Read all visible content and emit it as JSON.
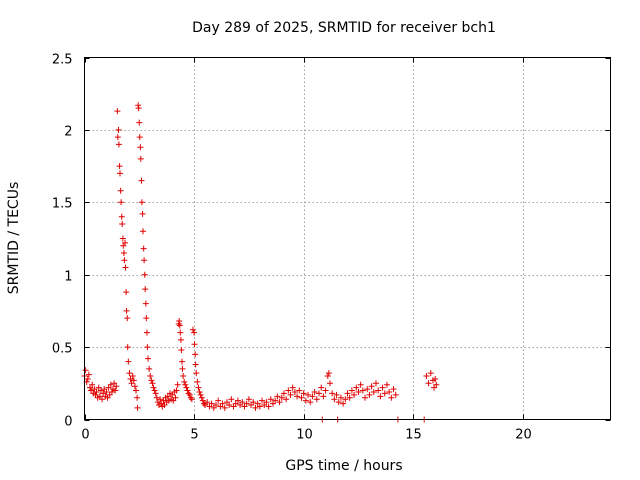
{
  "chart_data": {
    "type": "scatter",
    "title": "Day 289 of 2025, SRMTID for receiver bch1",
    "xlabel": "GPS time / hours",
    "ylabel": "SRMTID / TECUs",
    "xlim": [
      0,
      24
    ],
    "ylim": [
      0,
      2.5
    ],
    "xticks": [
      0,
      5,
      10,
      15,
      20
    ],
    "xtick_labels": [
      "0",
      "5",
      "10",
      "15",
      "20"
    ],
    "yticks": [
      0,
      0.5,
      1,
      1.5,
      2,
      2.5
    ],
    "ytick_labels": [
      "0",
      "0.5",
      "1",
      "1.5",
      "2",
      "2.5"
    ],
    "grid": true,
    "marker": "plus",
    "color": "#e00000",
    "series": [
      {
        "name": "bch1",
        "points": [
          [
            0.0,
            0.3
          ],
          [
            0.05,
            0.34
          ],
          [
            0.1,
            0.26
          ],
          [
            0.15,
            0.28
          ],
          [
            0.2,
            0.31
          ],
          [
            0.25,
            0.22
          ],
          [
            0.3,
            0.2
          ],
          [
            0.35,
            0.24
          ],
          [
            0.4,
            0.18
          ],
          [
            0.45,
            0.21
          ],
          [
            0.5,
            0.17
          ],
          [
            0.55,
            0.19
          ],
          [
            0.6,
            0.15
          ],
          [
            0.65,
            0.22
          ],
          [
            0.7,
            0.16
          ],
          [
            0.75,
            0.2
          ],
          [
            0.8,
            0.14
          ],
          [
            0.85,
            0.18
          ],
          [
            0.9,
            0.21
          ],
          [
            0.95,
            0.16
          ],
          [
            1.0,
            0.19
          ],
          [
            1.05,
            0.15
          ],
          [
            1.1,
            0.22
          ],
          [
            1.15,
            0.17
          ],
          [
            1.2,
            0.24
          ],
          [
            1.25,
            0.19
          ],
          [
            1.3,
            0.21
          ],
          [
            1.35,
            0.25
          ],
          [
            1.4,
            0.2
          ],
          [
            1.45,
            0.23
          ],
          [
            1.5,
            2.13
          ],
          [
            1.52,
            1.95
          ],
          [
            1.55,
            2.0
          ],
          [
            1.57,
            1.9
          ],
          [
            1.6,
            1.75
          ],
          [
            1.62,
            1.7
          ],
          [
            1.65,
            1.58
          ],
          [
            1.67,
            1.5
          ],
          [
            1.7,
            1.4
          ],
          [
            1.72,
            1.35
          ],
          [
            1.75,
            1.25
          ],
          [
            1.77,
            1.2
          ],
          [
            1.8,
            1.15
          ],
          [
            1.82,
            1.1
          ],
          [
            1.85,
            1.22
          ],
          [
            1.87,
            1.05
          ],
          [
            1.9,
            0.88
          ],
          [
            1.92,
            0.75
          ],
          [
            1.95,
            0.7
          ],
          [
            1.97,
            0.5
          ],
          [
            2.0,
            0.4
          ],
          [
            2.05,
            0.32
          ],
          [
            2.1,
            0.28
          ],
          [
            2.15,
            0.25
          ],
          [
            2.2,
            0.3
          ],
          [
            2.25,
            0.27
          ],
          [
            2.3,
            0.23
          ],
          [
            2.35,
            0.2
          ],
          [
            2.4,
            0.15
          ],
          [
            2.42,
            0.08
          ],
          [
            2.45,
            2.17
          ],
          [
            2.47,
            2.15
          ],
          [
            2.5,
            2.05
          ],
          [
            2.52,
            1.95
          ],
          [
            2.55,
            1.88
          ],
          [
            2.57,
            1.8
          ],
          [
            2.6,
            1.65
          ],
          [
            2.62,
            1.5
          ],
          [
            2.65,
            1.42
          ],
          [
            2.67,
            1.3
          ],
          [
            2.7,
            1.18
          ],
          [
            2.72,
            1.1
          ],
          [
            2.75,
            1.0
          ],
          [
            2.77,
            0.9
          ],
          [
            2.8,
            0.8
          ],
          [
            2.82,
            0.7
          ],
          [
            2.85,
            0.6
          ],
          [
            2.87,
            0.5
          ],
          [
            2.9,
            0.42
          ],
          [
            2.95,
            0.35
          ],
          [
            3.0,
            0.3
          ],
          [
            3.05,
            0.27
          ],
          [
            3.1,
            0.25
          ],
          [
            3.15,
            0.22
          ],
          [
            3.2,
            0.2
          ],
          [
            3.25,
            0.18
          ],
          [
            3.3,
            0.15
          ],
          [
            3.35,
            0.12
          ],
          [
            3.4,
            0.1
          ],
          [
            3.45,
            0.14
          ],
          [
            3.5,
            0.11
          ],
          [
            3.55,
            0.09
          ],
          [
            3.6,
            0.13
          ],
          [
            3.65,
            0.1
          ],
          [
            3.7,
            0.15
          ],
          [
            3.75,
            0.12
          ],
          [
            3.8,
            0.16
          ],
          [
            3.85,
            0.13
          ],
          [
            3.9,
            0.18
          ],
          [
            3.95,
            0.14
          ],
          [
            4.0,
            0.17
          ],
          [
            4.05,
            0.13
          ],
          [
            4.1,
            0.19
          ],
          [
            4.15,
            0.15
          ],
          [
            4.2,
            0.2
          ],
          [
            4.25,
            0.24
          ],
          [
            4.3,
            0.66
          ],
          [
            4.32,
            0.68
          ],
          [
            4.35,
            0.65
          ],
          [
            4.37,
            0.6
          ],
          [
            4.4,
            0.55
          ],
          [
            4.42,
            0.48
          ],
          [
            4.45,
            0.4
          ],
          [
            4.47,
            0.35
          ],
          [
            4.5,
            0.3
          ],
          [
            4.55,
            0.26
          ],
          [
            4.6,
            0.24
          ],
          [
            4.65,
            0.22
          ],
          [
            4.7,
            0.2
          ],
          [
            4.75,
            0.18
          ],
          [
            4.8,
            0.17
          ],
          [
            4.85,
            0.15
          ],
          [
            4.9,
            0.14
          ],
          [
            4.95,
            0.62
          ],
          [
            5.0,
            0.6
          ],
          [
            5.02,
            0.52
          ],
          [
            5.05,
            0.45
          ],
          [
            5.07,
            0.38
          ],
          [
            5.1,
            0.32
          ],
          [
            5.15,
            0.26
          ],
          [
            5.2,
            0.22
          ],
          [
            5.25,
            0.19
          ],
          [
            5.3,
            0.17
          ],
          [
            5.35,
            0.15
          ],
          [
            5.4,
            0.13
          ],
          [
            5.45,
            0.11
          ],
          [
            5.5,
            0.1
          ],
          [
            5.6,
            0.12
          ],
          [
            5.7,
            0.09
          ],
          [
            5.8,
            0.11
          ],
          [
            5.9,
            0.08
          ],
          [
            6.0,
            0.1
          ],
          [
            6.1,
            0.13
          ],
          [
            6.2,
            0.09
          ],
          [
            6.3,
            0.11
          ],
          [
            6.4,
            0.08
          ],
          [
            6.5,
            0.12
          ],
          [
            6.6,
            0.1
          ],
          [
            6.7,
            0.14
          ],
          [
            6.8,
            0.09
          ],
          [
            6.9,
            0.11
          ],
          [
            7.0,
            0.13
          ],
          [
            7.1,
            0.1
          ],
          [
            7.2,
            0.12
          ],
          [
            7.3,
            0.09
          ],
          [
            7.4,
            0.11
          ],
          [
            7.5,
            0.14
          ],
          [
            7.6,
            0.1
          ],
          [
            7.7,
            0.12
          ],
          [
            7.8,
            0.08
          ],
          [
            7.9,
            0.11
          ],
          [
            8.0,
            0.09
          ],
          [
            8.1,
            0.13
          ],
          [
            8.2,
            0.1
          ],
          [
            8.3,
            0.12
          ],
          [
            8.4,
            0.09
          ],
          [
            8.5,
            0.14
          ],
          [
            8.6,
            0.11
          ],
          [
            8.7,
            0.13
          ],
          [
            8.8,
            0.16
          ],
          [
            8.9,
            0.12
          ],
          [
            9.0,
            0.15
          ],
          [
            9.1,
            0.18
          ],
          [
            9.2,
            0.14
          ],
          [
            9.3,
            0.2
          ],
          [
            9.4,
            0.17
          ],
          [
            9.5,
            0.22
          ],
          [
            9.6,
            0.19
          ],
          [
            9.7,
            0.16
          ],
          [
            9.8,
            0.2
          ],
          [
            9.9,
            0.15
          ],
          [
            10.0,
            0.18
          ],
          [
            10.1,
            0.13
          ],
          [
            10.2,
            0.17
          ],
          [
            10.3,
            0.12
          ],
          [
            10.4,
            0.16
          ],
          [
            10.5,
            0.19
          ],
          [
            10.6,
            0.14
          ],
          [
            10.7,
            0.18
          ],
          [
            10.8,
            0.22
          ],
          [
            10.85,
            0.0
          ],
          [
            10.9,
            0.16
          ],
          [
            11.0,
            0.2
          ],
          [
            11.1,
            0.3
          ],
          [
            11.15,
            0.32
          ],
          [
            11.2,
            0.25
          ],
          [
            11.3,
            0.18
          ],
          [
            11.4,
            0.14
          ],
          [
            11.5,
            0.17
          ],
          [
            11.55,
            0.0
          ],
          [
            11.6,
            0.12
          ],
          [
            11.7,
            0.15
          ],
          [
            11.8,
            0.11
          ],
          [
            11.9,
            0.14
          ],
          [
            12.0,
            0.18
          ],
          [
            12.1,
            0.15
          ],
          [
            12.2,
            0.2
          ],
          [
            12.3,
            0.17
          ],
          [
            12.4,
            0.22
          ],
          [
            12.5,
            0.19
          ],
          [
            12.6,
            0.24
          ],
          [
            12.7,
            0.2
          ],
          [
            12.8,
            0.15
          ],
          [
            12.9,
            0.21
          ],
          [
            13.0,
            0.17
          ],
          [
            13.1,
            0.23
          ],
          [
            13.2,
            0.19
          ],
          [
            13.3,
            0.25
          ],
          [
            13.4,
            0.2
          ],
          [
            13.5,
            0.16
          ],
          [
            13.6,
            0.22
          ],
          [
            13.7,
            0.18
          ],
          [
            13.8,
            0.24
          ],
          [
            13.9,
            0.19
          ],
          [
            14.0,
            0.15
          ],
          [
            14.1,
            0.21
          ],
          [
            14.2,
            0.17
          ],
          [
            14.3,
            0.0
          ],
          [
            15.5,
            0.0
          ],
          [
            15.6,
            0.3
          ],
          [
            15.7,
            0.25
          ],
          [
            15.8,
            0.32
          ],
          [
            15.9,
            0.27
          ],
          [
            15.95,
            0.22
          ],
          [
            16.0,
            0.28
          ],
          [
            16.05,
            0.24
          ]
        ]
      }
    ]
  }
}
